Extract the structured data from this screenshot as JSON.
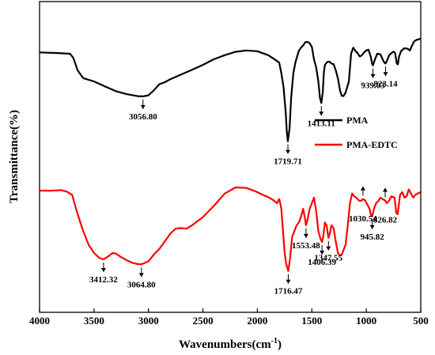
{
  "chart_data": {
    "type": "line",
    "xlabel_main": "Wavenumbers(cm",
    "xlabel_sup": "-1",
    "xlabel_close": ")",
    "ylabel": "Transmittance(%)",
    "xlim": [
      4000,
      500
    ],
    "x_ticks": [
      "4000",
      "3500",
      "3000",
      "2500",
      "2000",
      "1500",
      "1000",
      "500"
    ],
    "y_ticks_shown": false,
    "legend_position": "right",
    "series": [
      {
        "name": "PMA",
        "color": "#000000",
        "points": [
          [
            4000,
            0.075
          ],
          [
            3850,
            0.077
          ],
          [
            3720,
            0.08
          ],
          [
            3690,
            0.095
          ],
          [
            3650,
            0.14
          ],
          [
            3600,
            0.168
          ],
          [
            3500,
            0.18
          ],
          [
            3400,
            0.198
          ],
          [
            3300,
            0.215
          ],
          [
            3200,
            0.226
          ],
          [
            3100,
            0.233
          ],
          [
            3050,
            0.234
          ],
          [
            3000,
            0.23
          ],
          [
            2950,
            0.212
          ],
          [
            2900,
            0.19
          ],
          [
            2850,
            0.183
          ],
          [
            2800,
            0.172
          ],
          [
            2700,
            0.155
          ],
          [
            2600,
            0.138
          ],
          [
            2500,
            0.12
          ],
          [
            2400,
            0.1
          ],
          [
            2300,
            0.085
          ],
          [
            2200,
            0.073
          ],
          [
            2100,
            0.068
          ],
          [
            2000,
            0.071
          ],
          [
            1950,
            0.078
          ],
          [
            1900,
            0.085
          ],
          [
            1850,
            0.098
          ],
          [
            1800,
            0.112
          ],
          [
            1780,
            0.15
          ],
          [
            1760,
            0.2
          ],
          [
            1740,
            0.29
          ],
          [
            1730,
            0.36
          ],
          [
            1719.7,
            0.396
          ],
          [
            1705,
            0.35
          ],
          [
            1690,
            0.24
          ],
          [
            1670,
            0.15
          ],
          [
            1650,
            0.11
          ],
          [
            1620,
            0.07
          ],
          [
            1600,
            0.058
          ],
          [
            1580,
            0.05
          ],
          [
            1560,
            0.038
          ],
          [
            1540,
            0.037
          ],
          [
            1520,
            0.042
          ],
          [
            1500,
            0.055
          ],
          [
            1480,
            0.1
          ],
          [
            1460,
            0.13
          ],
          [
            1440,
            0.18
          ],
          [
            1425,
            0.24
          ],
          [
            1413.1,
            0.258
          ],
          [
            1400,
            0.22
          ],
          [
            1390,
            0.15
          ],
          [
            1380,
            0.12
          ],
          [
            1360,
            0.11
          ],
          [
            1340,
            0.108
          ],
          [
            1320,
            0.115
          ],
          [
            1300,
            0.118
          ],
          [
            1280,
            0.14
          ],
          [
            1260,
            0.17
          ],
          [
            1240,
            0.215
          ],
          [
            1225,
            0.232
          ],
          [
            1210,
            0.233
          ],
          [
            1190,
            0.22
          ],
          [
            1175,
            0.2
          ],
          [
            1160,
            0.18
          ],
          [
            1140,
            0.08
          ],
          [
            1120,
            0.058
          ],
          [
            1100,
            0.07
          ],
          [
            1080,
            0.078
          ],
          [
            1060,
            0.09
          ],
          [
            1040,
            0.085
          ],
          [
            1020,
            0.075
          ],
          [
            1000,
            0.068
          ],
          [
            980,
            0.065
          ],
          [
            960,
            0.09
          ],
          [
            945,
            0.118
          ],
          [
            939.03,
            0.122
          ],
          [
            925,
            0.105
          ],
          [
            900,
            0.08
          ],
          [
            870,
            0.082
          ],
          [
            850,
            0.1
          ],
          [
            835,
            0.112
          ],
          [
            823.14,
            0.115
          ],
          [
            810,
            0.105
          ],
          [
            790,
            0.085
          ],
          [
            770,
            0.078
          ],
          [
            750,
            0.072
          ],
          [
            735,
            0.078
          ],
          [
            720,
            0.115
          ],
          [
            710,
            0.118
          ],
          [
            700,
            0.09
          ],
          [
            680,
            0.07
          ],
          [
            650,
            0.06
          ],
          [
            620,
            0.062
          ],
          [
            600,
            0.068
          ],
          [
            580,
            0.05
          ],
          [
            560,
            0.035
          ],
          [
            540,
            0.03
          ],
          [
            520,
            0.028
          ],
          [
            500,
            0.025
          ]
        ]
      },
      {
        "name": "PMA-EDTC",
        "color": "#ff0000",
        "points": [
          [
            4000,
            0.575
          ],
          [
            3900,
            0.575
          ],
          [
            3800,
            0.573
          ],
          [
            3750,
            0.578
          ],
          [
            3700,
            0.59
          ],
          [
            3680,
            0.62
          ],
          [
            3650,
            0.66
          ],
          [
            3600,
            0.72
          ],
          [
            3550,
            0.77
          ],
          [
            3500,
            0.8
          ],
          [
            3450,
            0.818
          ],
          [
            3412.3,
            0.823
          ],
          [
            3370,
            0.812
          ],
          [
            3330,
            0.8
          ],
          [
            3300,
            0.802
          ],
          [
            3250,
            0.815
          ],
          [
            3200,
            0.826
          ],
          [
            3150,
            0.835
          ],
          [
            3100,
            0.84
          ],
          [
            3064.8,
            0.841
          ],
          [
            3000,
            0.83
          ],
          [
            2950,
            0.805
          ],
          [
            2900,
            0.785
          ],
          [
            2850,
            0.758
          ],
          [
            2800,
            0.73
          ],
          [
            2750,
            0.712
          ],
          [
            2700,
            0.71
          ],
          [
            2650,
            0.712
          ],
          [
            2600,
            0.7
          ],
          [
            2500,
            0.67
          ],
          [
            2400,
            0.63
          ],
          [
            2300,
            0.585
          ],
          [
            2200,
            0.563
          ],
          [
            2100,
            0.565
          ],
          [
            2000,
            0.58
          ],
          [
            1950,
            0.59
          ],
          [
            1900,
            0.598
          ],
          [
            1850,
            0.61
          ],
          [
            1820,
            0.62
          ],
          [
            1800,
            0.605
          ],
          [
            1790,
            0.62
          ],
          [
            1780,
            0.64
          ],
          [
            1765,
            0.72
          ],
          [
            1750,
            0.8
          ],
          [
            1735,
            0.84
          ],
          [
            1716.5,
            0.865
          ],
          [
            1700,
            0.82
          ],
          [
            1680,
            0.74
          ],
          [
            1660,
            0.72
          ],
          [
            1640,
            0.7
          ],
          [
            1620,
            0.69
          ],
          [
            1600,
            0.67
          ],
          [
            1580,
            0.64
          ],
          [
            1565,
            0.67
          ],
          [
            1553.4,
            0.7
          ],
          [
            1540,
            0.68
          ],
          [
            1520,
            0.64
          ],
          [
            1500,
            0.62
          ],
          [
            1480,
            0.6
          ],
          [
            1460,
            0.65
          ],
          [
            1440,
            0.72
          ],
          [
            1420,
            0.75
          ],
          [
            1406.4,
            0.76
          ],
          [
            1395,
            0.74
          ],
          [
            1380,
            0.69
          ],
          [
            1365,
            0.7
          ],
          [
            1347.5,
            0.745
          ],
          [
            1335,
            0.73
          ],
          [
            1320,
            0.7
          ],
          [
            1300,
            0.71
          ],
          [
            1280,
            0.76
          ],
          [
            1260,
            0.8
          ],
          [
            1240,
            0.81
          ],
          [
            1225,
            0.805
          ],
          [
            1210,
            0.79
          ],
          [
            1190,
            0.77
          ],
          [
            1170,
            0.7
          ],
          [
            1150,
            0.62
          ],
          [
            1130,
            0.585
          ],
          [
            1110,
            0.595
          ],
          [
            1090,
            0.6
          ],
          [
            1070,
            0.61
          ],
          [
            1050,
            0.612
          ],
          [
            1030.5,
            0.605
          ],
          [
            1010,
            0.61
          ],
          [
            990,
            0.625
          ],
          [
            970,
            0.64
          ],
          [
            960,
            0.66
          ],
          [
            945.8,
            0.668
          ],
          [
            930,
            0.64
          ],
          [
            910,
            0.62
          ],
          [
            890,
            0.612
          ],
          [
            870,
            0.6
          ],
          [
            850,
            0.605
          ],
          [
            826.8,
            0.61
          ],
          [
            810,
            0.62
          ],
          [
            790,
            0.61
          ],
          [
            770,
            0.595
          ],
          [
            740,
            0.6
          ],
          [
            725,
            0.655
          ],
          [
            712,
            0.66
          ],
          [
            700,
            0.62
          ],
          [
            690,
            0.59
          ],
          [
            670,
            0.58
          ],
          [
            650,
            0.6
          ],
          [
            630,
            0.595
          ],
          [
            610,
            0.57
          ],
          [
            590,
            0.585
          ],
          [
            570,
            0.6
          ],
          [
            550,
            0.59
          ],
          [
            530,
            0.585
          ],
          [
            500,
            0.58
          ]
        ]
      }
    ],
    "annotations": [
      {
        "label": "3056.80",
        "series": 0,
        "x": 3050,
        "dir": "down"
      },
      {
        "label": "1719.71",
        "series": 0,
        "x": 1719.71,
        "dir": "down"
      },
      {
        "label": "1413.11",
        "series": 0,
        "x": 1413.11,
        "dir": "down"
      },
      {
        "label": "939.03",
        "series": 0,
        "x": 939.03,
        "dir": "down"
      },
      {
        "label": "823.14",
        "series": 0,
        "x": 823.14,
        "dir": "down"
      },
      {
        "label": "3412.32",
        "series": 1,
        "x": 3412.32,
        "dir": "down"
      },
      {
        "label": "3064.80",
        "series": 1,
        "x": 3064.8,
        "dir": "down"
      },
      {
        "label": "1716.47",
        "series": 1,
        "x": 1716.47,
        "dir": "down"
      },
      {
        "label": "1553.48",
        "series": 1,
        "x": 1553.48,
        "dir": "down"
      },
      {
        "label": "1406.39",
        "series": 1,
        "x": 1406.39,
        "dir": "down"
      },
      {
        "label": "1347.55",
        "series": 1,
        "x": 1347.55,
        "dir": "down"
      },
      {
        "label": "1030.54",
        "series": 1,
        "x": 1030.54,
        "dir": "up"
      },
      {
        "label": "945.82",
        "series": 1,
        "x": 945.82,
        "dir": "down"
      },
      {
        "label": "826.82",
        "series": 1,
        "x": 826.82,
        "dir": "up"
      }
    ]
  }
}
